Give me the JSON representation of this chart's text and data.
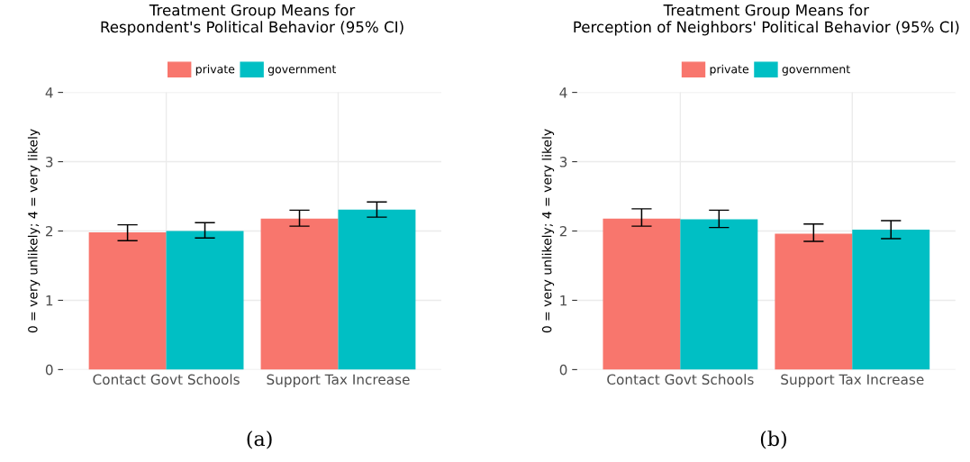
{
  "chart_data": [
    {
      "type": "bar",
      "title": "Treatment Group Means for\nRespondent's Political Behavior (95% CI)",
      "ylabel": "0 = very unlikely; 4 = very likely",
      "categories": [
        "Contact Govt Schools",
        "Support Tax Increase"
      ],
      "series": [
        {
          "name": "private",
          "color": "#f8766d",
          "values": [
            1.98,
            2.18
          ],
          "errors": [
            [
              1.86,
              2.09
            ],
            [
              2.07,
              2.3
            ]
          ]
        },
        {
          "name": "government",
          "color": "#00bfc4",
          "values": [
            2.0,
            2.31
          ],
          "errors": [
            [
              1.9,
              2.12
            ],
            [
              2.2,
              2.42
            ]
          ]
        }
      ],
      "ylim": [
        0,
        4
      ],
      "yticks": [
        0,
        1,
        2,
        3,
        4
      ],
      "grid": true,
      "legend": "top",
      "annotations": [
        "(a)"
      ]
    },
    {
      "type": "bar",
      "title": "Treatment Group Means for\nPerception of Neighbors' Political Behavior (95% CI)",
      "ylabel": "0 = very unlikely; 4 = very likely",
      "categories": [
        "Contact Govt Schools",
        "Support Tax Increase"
      ],
      "series": [
        {
          "name": "private",
          "color": "#f8766d",
          "values": [
            2.18,
            1.96
          ],
          "errors": [
            [
              2.07,
              2.32
            ],
            [
              1.85,
              2.1
            ]
          ]
        },
        {
          "name": "government",
          "color": "#00bfc4",
          "values": [
            2.17,
            2.02
          ],
          "errors": [
            [
              2.05,
              2.3
            ],
            [
              1.89,
              2.15
            ]
          ]
        }
      ],
      "ylim": [
        0,
        4
      ],
      "yticks": [
        0,
        1,
        2,
        3,
        4
      ],
      "grid": true,
      "legend": "top",
      "annotations": [
        "(b)"
      ]
    }
  ]
}
